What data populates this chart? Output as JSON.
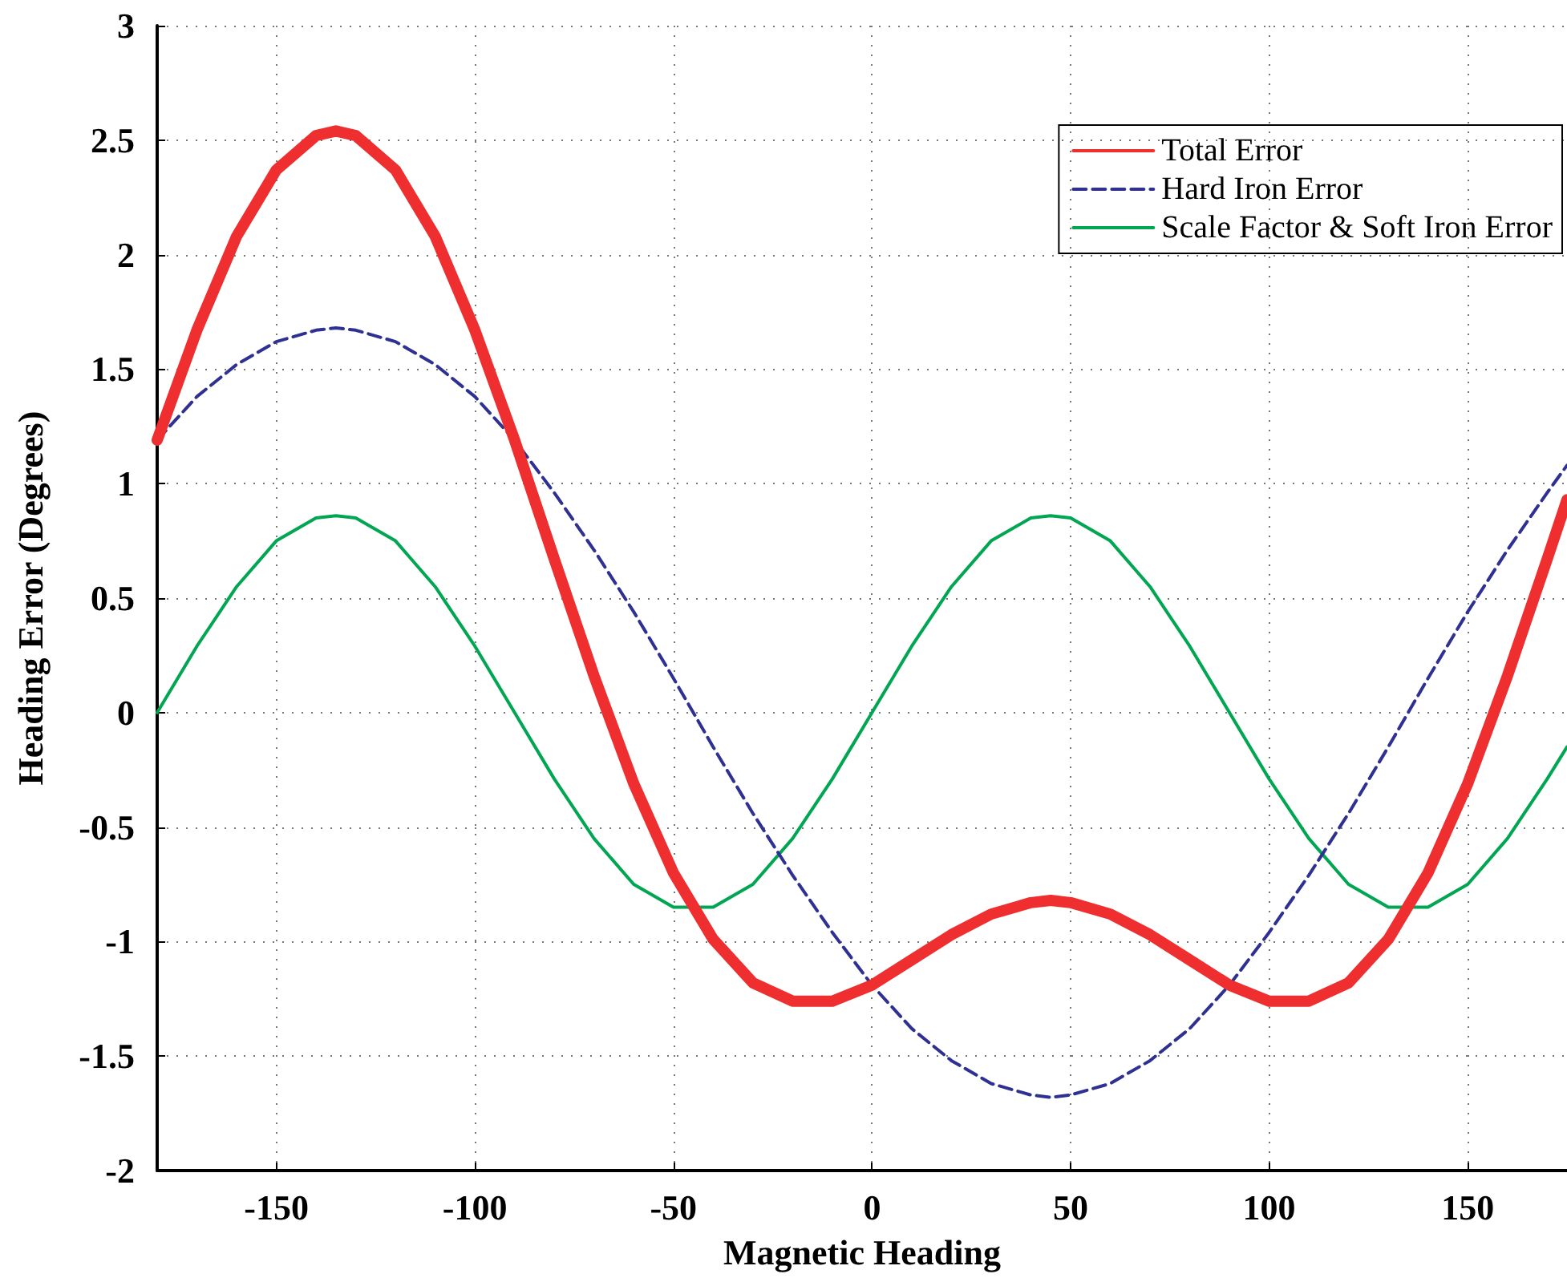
{
  "chart_data": {
    "type": "line",
    "xlabel": "Magnetic Heading",
    "ylabel": "Heading Error (Degrees)",
    "x": [
      -180,
      -170,
      -160,
      -150,
      -140,
      -135,
      -130,
      -120,
      -110,
      -100,
      -90,
      -80,
      -70,
      -60,
      -50,
      -40,
      -30,
      -20,
      -10,
      0,
      10,
      20,
      30,
      40,
      45,
      50,
      60,
      70,
      80,
      90,
      100,
      110,
      120,
      130,
      140,
      150,
      160,
      170,
      175
    ],
    "series": [
      {
        "name": "Total Error",
        "color": "#ee2e2f",
        "line_style": "solid",
        "values": [
          1.19,
          1.67,
          2.08,
          2.37,
          2.52,
          2.54,
          2.52,
          2.37,
          2.08,
          1.67,
          1.19,
          0.67,
          0.16,
          -0.31,
          -0.7,
          -0.99,
          -1.18,
          -1.26,
          -1.26,
          -1.19,
          -1.08,
          -0.97,
          -0.88,
          -0.83,
          -0.82,
          -0.83,
          -0.88,
          -0.97,
          -1.08,
          -1.19,
          -1.26,
          -1.26,
          -1.18,
          -0.99,
          -0.7,
          -0.31,
          0.16,
          0.67,
          0.93
        ]
      },
      {
        "name": "Hard Iron Error",
        "color": "#2e3192",
        "line_style": "dashed",
        "values": [
          1.19,
          1.38,
          1.52,
          1.62,
          1.67,
          1.68,
          1.67,
          1.62,
          1.52,
          1.38,
          1.19,
          0.96,
          0.71,
          0.44,
          0.15,
          -0.15,
          -0.44,
          -0.71,
          -0.96,
          -1.19,
          -1.38,
          -1.52,
          -1.62,
          -1.67,
          -1.68,
          -1.67,
          -1.62,
          -1.52,
          -1.38,
          -1.19,
          -0.96,
          -0.71,
          -0.44,
          -0.15,
          0.15,
          0.44,
          0.71,
          0.96,
          1.08
        ]
      },
      {
        "name": "Scale Factor & Soft Iron Error",
        "color": "#00a651",
        "line_style": "solid",
        "values": [
          0,
          0.29,
          0.55,
          0.75,
          0.85,
          0.86,
          0.85,
          0.75,
          0.55,
          0.29,
          0,
          -0.29,
          -0.55,
          -0.75,
          -0.85,
          -0.85,
          -0.75,
          -0.55,
          -0.29,
          0,
          0.29,
          0.55,
          0.75,
          0.85,
          0.86,
          0.85,
          0.75,
          0.55,
          0.29,
          0,
          -0.29,
          -0.55,
          -0.75,
          -0.85,
          -0.85,
          -0.75,
          -0.55,
          -0.29,
          -0.15
        ]
      }
    ],
    "xlim": [
      -180,
      175
    ],
    "xticks": [
      -150,
      -100,
      -50,
      0,
      50,
      100,
      150
    ],
    "ylim": [
      -2,
      3
    ],
    "yticks": [
      -2,
      -1.5,
      -1,
      -0.5,
      0,
      0.5,
      1,
      1.5,
      2,
      2.5,
      3
    ],
    "grid": true,
    "legend": "top right",
    "marker": "none"
  }
}
